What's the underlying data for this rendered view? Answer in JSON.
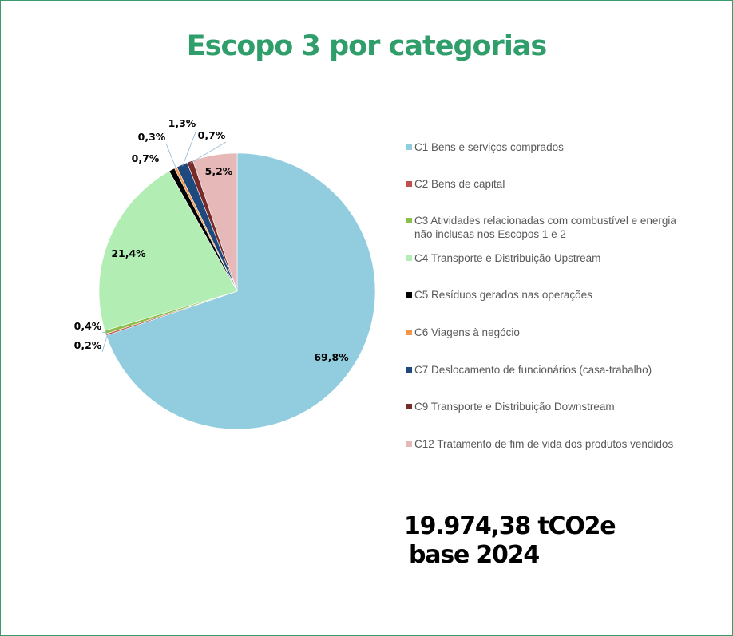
{
  "title": "Escopo 3 por categorias",
  "total": {
    "line1": "19.974,38 tCO2e",
    "line2": "base 2024"
  },
  "chart_data": {
    "type": "pie",
    "title": "Escopo 3 por categorias",
    "legend_position": "right",
    "slices": [
      {
        "name": "C1 Bens e serviços comprados",
        "value": 69.8,
        "label": "69,8%",
        "color": "#92cddf"
      },
      {
        "name": "C2 Bens de capital",
        "value": 0.2,
        "label": "0,2%",
        "color": "#c0504d"
      },
      {
        "name": "C3 Atividades relacionadas com combustível e energia não inclusas nos Escopos 1 e 2",
        "value": 0.4,
        "label": "0,4%",
        "color": "#8bbf4a"
      },
      {
        "name": "C4 Transporte e Distribuição Upstream",
        "value": 21.4,
        "label": "21,4%",
        "color": "#b2eeb4"
      },
      {
        "name": "C5 Resíduos gerados nas operações",
        "value": 0.7,
        "label": "0,7%",
        "color": "#000000"
      },
      {
        "name": "C6 Viagens à negócio",
        "value": 0.3,
        "label": "0,3%",
        "color": "#f79646"
      },
      {
        "name": "C7 Deslocamento de funcionários (casa-trabalho)",
        "value": 1.3,
        "label": "1,3%",
        "color": "#1f497d"
      },
      {
        "name": "C9 Transporte e Distribuição Downstream",
        "value": 0.7,
        "label": "0,7%",
        "color": "#772c2a"
      },
      {
        "name": "C12 Tratamento de fim de vida dos produtos vendidos",
        "value": 5.2,
        "label": "5,2%",
        "color": "#e6b9b8"
      }
    ]
  }
}
